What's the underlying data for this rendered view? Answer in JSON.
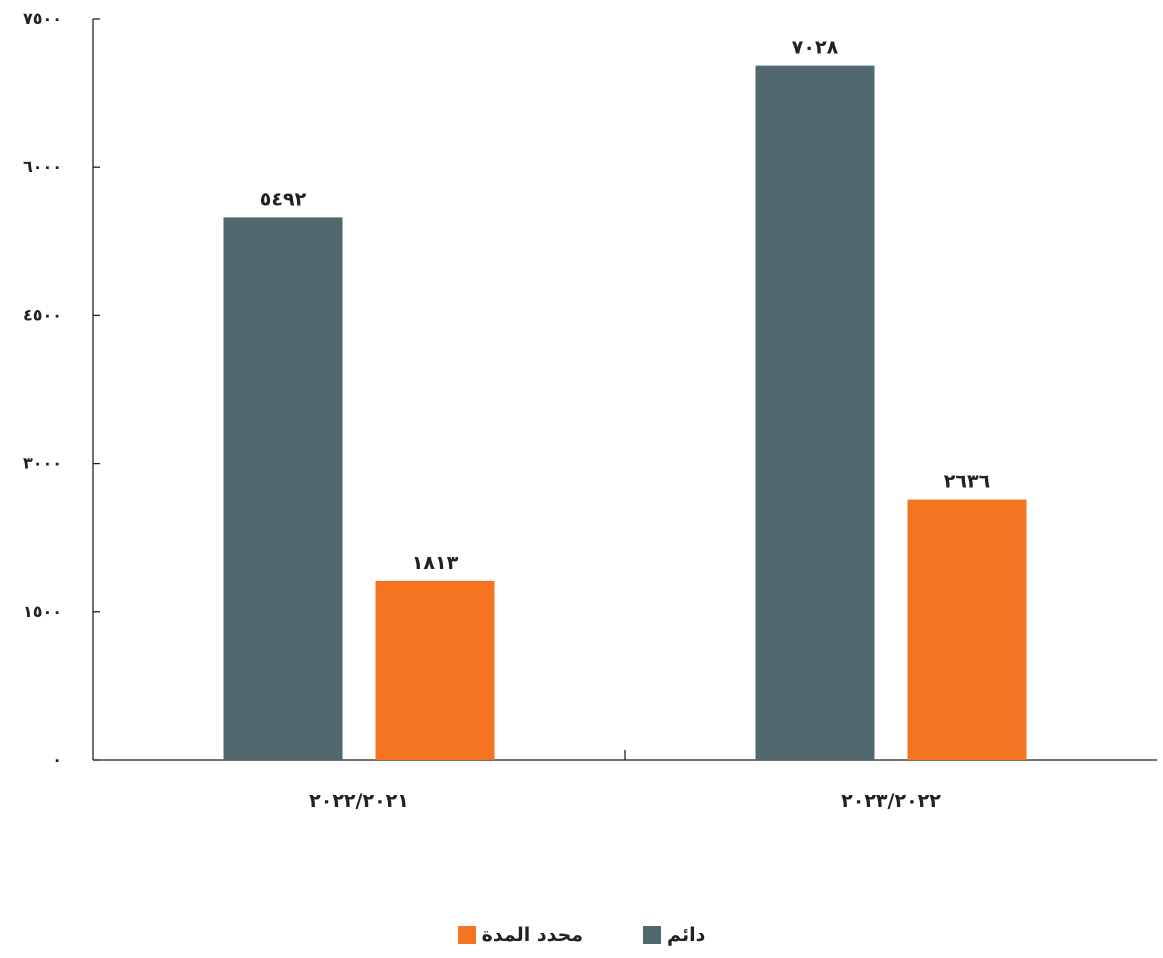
{
  "chart_data": {
    "type": "bar",
    "categories": [
      "٢٠٢٢/٢٠٢١",
      "٢٠٢٣/٢٠٢٢"
    ],
    "series": [
      {
        "name": "دائم",
        "color": "#51696e",
        "values": [
          5492,
          7028
        ],
        "labels": [
          "٥٤٩٢",
          "٧٠٢٨"
        ]
      },
      {
        "name": "محدد المدة",
        "color": "#f47422",
        "values": [
          1813,
          2636
        ],
        "labels": [
          "١٨١٣",
          "٢٦٣٦"
        ]
      }
    ],
    "ylim": [
      0,
      7500
    ],
    "yticks": [
      0,
      1500,
      3000,
      4500,
      6000,
      7500
    ],
    "ytick_labels": [
      "٠",
      "١٥٠٠",
      "٣٠٠٠",
      "٤٥٠٠",
      "٦٠٠٠",
      "٧٥٠٠"
    ],
    "title": "",
    "xlabel": "",
    "ylabel": "",
    "grid": false,
    "legend": "bottom-center"
  }
}
